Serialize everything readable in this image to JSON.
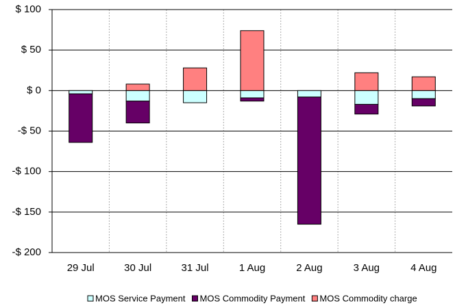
{
  "chart_data": {
    "type": "stacked_bar",
    "categories": [
      "29 Jul",
      "30 Jul",
      "31 Jul",
      "1 Aug",
      "2 Aug",
      "3 Aug",
      "4 Aug"
    ],
    "series": [
      {
        "name": "MOS Service Payment",
        "color": "#ccffff",
        "values": [
          -4,
          -13,
          -15,
          -9,
          -8,
          -17,
          -10
        ]
      },
      {
        "name": "MOS Commodity Payment",
        "color": "#660066",
        "values": [
          -60,
          -27,
          0,
          -4,
          -157,
          -12,
          -9
        ]
      },
      {
        "name": "MOS Commodity charge",
        "color": "#ff8080",
        "values": [
          0,
          8,
          28,
          74,
          0,
          22,
          17
        ]
      }
    ],
    "ylim": [
      -200,
      100
    ],
    "yticks": [
      {
        "value": -200,
        "label": "-$ 200"
      },
      {
        "value": -150,
        "label": "-$ 150"
      },
      {
        "value": -100,
        "label": "-$ 100"
      },
      {
        "value": -50,
        "label": "-$ 50"
      },
      {
        "value": 0,
        "label": "$ 0"
      },
      {
        "value": 50,
        "label": "$ 50"
      },
      {
        "value": 100,
        "label": "$ 100"
      }
    ],
    "grid": true,
    "legend": "bottom"
  }
}
